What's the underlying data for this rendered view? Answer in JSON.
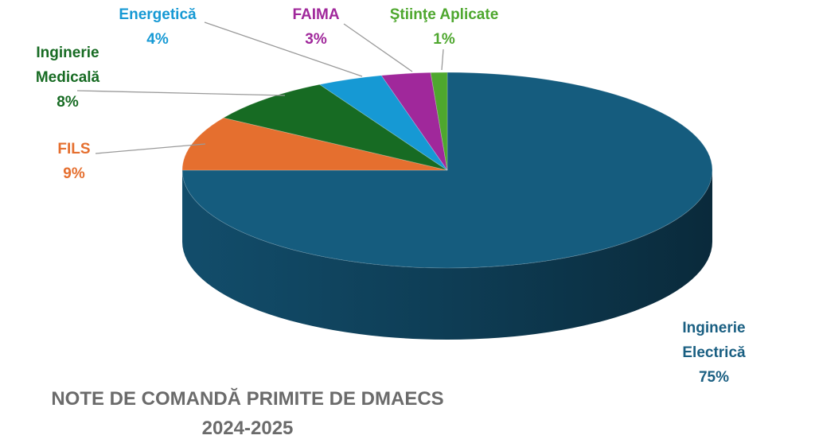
{
  "chart_data": {
    "type": "pie",
    "style": "3d",
    "title": "NOTE DE COMANDĂ PRIMITE DE DMAECS",
    "subtitle": "2024-2025",
    "legend": "none",
    "slices": [
      {
        "name": "Inginerie Electrică",
        "label_lines": [
          "Inginerie",
          "Electrică"
        ],
        "value": 75,
        "label": "75%",
        "color": "#155c7e"
      },
      {
        "name": "FILS",
        "label_lines": [
          "FILS"
        ],
        "value": 9,
        "label": "9%",
        "color": "#e56f2f"
      },
      {
        "name": "Inginerie Medicală",
        "label_lines": [
          "Inginerie",
          "Medicală"
        ],
        "value": 8,
        "label": "8%",
        "color": "#176b23"
      },
      {
        "name": "Energetică",
        "label_lines": [
          "Energetică"
        ],
        "value": 4,
        "label": "4%",
        "color": "#1699d4"
      },
      {
        "name": "FAIMA",
        "label_lines": [
          "FAIMA"
        ],
        "value": 3,
        "label": "3%",
        "color": "#a0289b"
      },
      {
        "name": "Ştiinţe Aplicate",
        "label_lines": [
          "Ştiinţe Aplicate"
        ],
        "value": 1,
        "label": "1%",
        "color": "#4ea72e"
      }
    ]
  }
}
